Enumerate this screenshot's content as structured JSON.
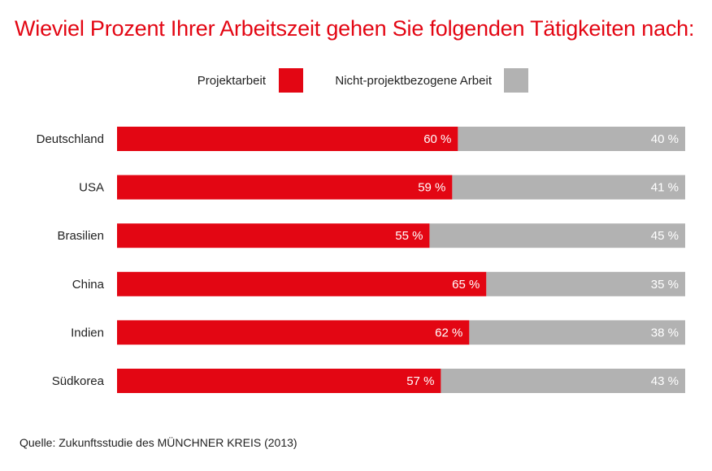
{
  "title": "Wieviel Prozent Ihrer Arbeitszeit gehen Sie folgenden Tätigkeiten nach:",
  "legend": {
    "series_1": "Projektarbeit",
    "series_2": "Nicht-projektbezogene Arbeit"
  },
  "colors": {
    "title": "#e30613",
    "series_1": "#e30613",
    "series_2": "#b2b2b2"
  },
  "source": "Quelle: Zukunftsstudie des MÜNCHNER KREIS (2013)",
  "chart_data": {
    "type": "bar",
    "orientation": "horizontal",
    "stacked": true,
    "title": "Wieviel Prozent Ihrer Arbeitszeit gehen Sie folgenden Tätigkeiten nach:",
    "categories": [
      "Deutschland",
      "USA",
      "Brasilien",
      "China",
      "Indien",
      "Südkorea"
    ],
    "series": [
      {
        "name": "Projektarbeit",
        "values": [
          60,
          59,
          55,
          65,
          62,
          57
        ],
        "labels": [
          "60 %",
          "59 %",
          "55 %",
          "65 %",
          "62 %",
          "57 %"
        ]
      },
      {
        "name": "Nicht-projektbezogene Arbeit",
        "values": [
          40,
          41,
          45,
          35,
          38,
          43
        ],
        "labels": [
          "40 %",
          "41 %",
          "45 %",
          "35 %",
          "38 %",
          "43 %"
        ]
      }
    ],
    "xlim": [
      0,
      100
    ],
    "grid": false,
    "legend_position": "top"
  }
}
